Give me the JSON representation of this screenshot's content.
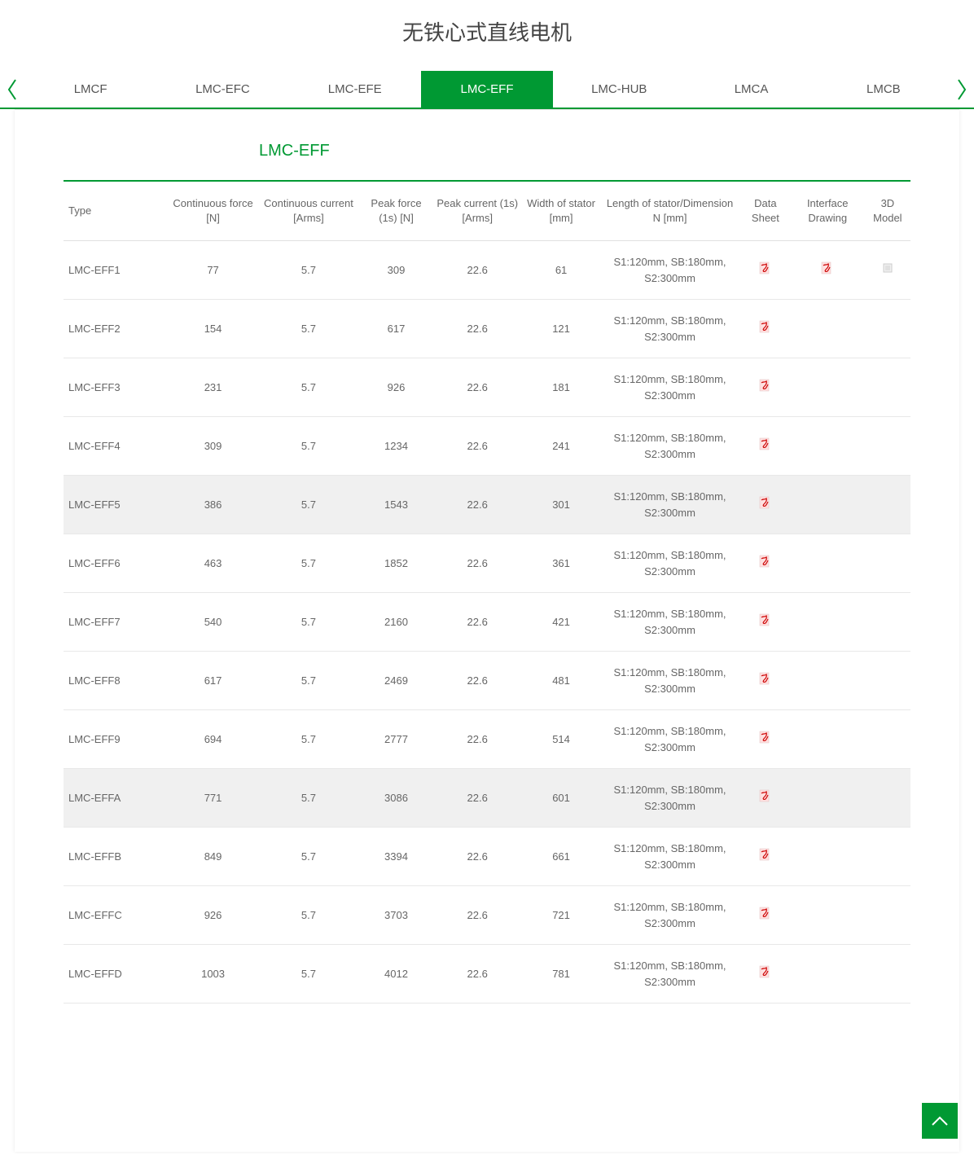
{
  "page_title": "无铁心式直线电机",
  "tabs": [
    {
      "label": "LMCF",
      "active": false
    },
    {
      "label": "LMC-EFC",
      "active": false
    },
    {
      "label": "LMC-EFE",
      "active": false
    },
    {
      "label": "LMC-EFF",
      "active": true
    },
    {
      "label": "LMC-HUB",
      "active": false
    },
    {
      "label": "LMCA",
      "active": false
    },
    {
      "label": "LMCB",
      "active": false
    }
  ],
  "section_title": "LMC-EFF",
  "table": {
    "headers": {
      "type": "Type",
      "cont_force": "Continuous force [N]",
      "cont_current": "Continuous current [Arms]",
      "peak_force": "Peak force (1s) [N]",
      "peak_current": "Peak current (1s) [Arms]",
      "width": "Width of stator [mm]",
      "length": "Length of stator/Dimension N [mm]",
      "datasheet": "Data Sheet",
      "drawing": "Interface Drawing",
      "model": "3D Model"
    },
    "rows": [
      {
        "type": "LMC-EFF1",
        "cf": "77",
        "cc": "5.7",
        "pf": "309",
        "pc": "22.6",
        "w": "61",
        "len": "S1:120mm, SB:180mm, S2:300mm",
        "ds": true,
        "dr": true,
        "md": true,
        "hl": false
      },
      {
        "type": "LMC-EFF2",
        "cf": "154",
        "cc": "5.7",
        "pf": "617",
        "pc": "22.6",
        "w": "121",
        "len": "S1:120mm, SB:180mm, S2:300mm",
        "ds": true,
        "dr": false,
        "md": false,
        "hl": false
      },
      {
        "type": "LMC-EFF3",
        "cf": "231",
        "cc": "5.7",
        "pf": "926",
        "pc": "22.6",
        "w": "181",
        "len": "S1:120mm, SB:180mm, S2:300mm",
        "ds": true,
        "dr": false,
        "md": false,
        "hl": false
      },
      {
        "type": "LMC-EFF4",
        "cf": "309",
        "cc": "5.7",
        "pf": "1234",
        "pc": "22.6",
        "w": "241",
        "len": "S1:120mm, SB:180mm, S2:300mm",
        "ds": true,
        "dr": false,
        "md": false,
        "hl": false
      },
      {
        "type": "LMC-EFF5",
        "cf": "386",
        "cc": "5.7",
        "pf": "1543",
        "pc": "22.6",
        "w": "301",
        "len": "S1:120mm, SB:180mm, S2:300mm",
        "ds": true,
        "dr": false,
        "md": false,
        "hl": true
      },
      {
        "type": "LMC-EFF6",
        "cf": "463",
        "cc": "5.7",
        "pf": "1852",
        "pc": "22.6",
        "w": "361",
        "len": "S1:120mm, SB:180mm, S2:300mm",
        "ds": true,
        "dr": false,
        "md": false,
        "hl": false
      },
      {
        "type": "LMC-EFF7",
        "cf": "540",
        "cc": "5.7",
        "pf": "2160",
        "pc": "22.6",
        "w": "421",
        "len": "S1:120mm, SB:180mm, S2:300mm",
        "ds": true,
        "dr": false,
        "md": false,
        "hl": false
      },
      {
        "type": "LMC-EFF8",
        "cf": "617",
        "cc": "5.7",
        "pf": "2469",
        "pc": "22.6",
        "w": "481",
        "len": "S1:120mm, SB:180mm, S2:300mm",
        "ds": true,
        "dr": false,
        "md": false,
        "hl": false
      },
      {
        "type": "LMC-EFF9",
        "cf": "694",
        "cc": "5.7",
        "pf": "2777",
        "pc": "22.6",
        "w": "514",
        "len": "S1:120mm, SB:180mm, S2:300mm",
        "ds": true,
        "dr": false,
        "md": false,
        "hl": false
      },
      {
        "type": "LMC-EFFA",
        "cf": "771",
        "cc": "5.7",
        "pf": "3086",
        "pc": "22.6",
        "w": "601",
        "len": "S1:120mm, SB:180mm, S2:300mm",
        "ds": true,
        "dr": false,
        "md": false,
        "hl": true
      },
      {
        "type": "LMC-EFFB",
        "cf": "849",
        "cc": "5.7",
        "pf": "3394",
        "pc": "22.6",
        "w": "661",
        "len": "S1:120mm, SB:180mm, S2:300mm",
        "ds": true,
        "dr": false,
        "md": false,
        "hl": false
      },
      {
        "type": "LMC-EFFC",
        "cf": "926",
        "cc": "5.7",
        "pf": "3703",
        "pc": "22.6",
        "w": "721",
        "len": "S1:120mm, SB:180mm, S2:300mm",
        "ds": true,
        "dr": false,
        "md": false,
        "hl": false
      },
      {
        "type": "LMC-EFFD",
        "cf": "1003",
        "cc": "5.7",
        "pf": "4012",
        "pc": "22.6",
        "w": "781",
        "len": "S1:120mm, SB:180mm, S2:300mm",
        "ds": true,
        "dr": false,
        "md": false,
        "hl": false
      }
    ]
  },
  "colors": {
    "accent": "#009933",
    "pdf_fill": "#ffe0e0",
    "pdf_stroke": "#cc0000"
  }
}
